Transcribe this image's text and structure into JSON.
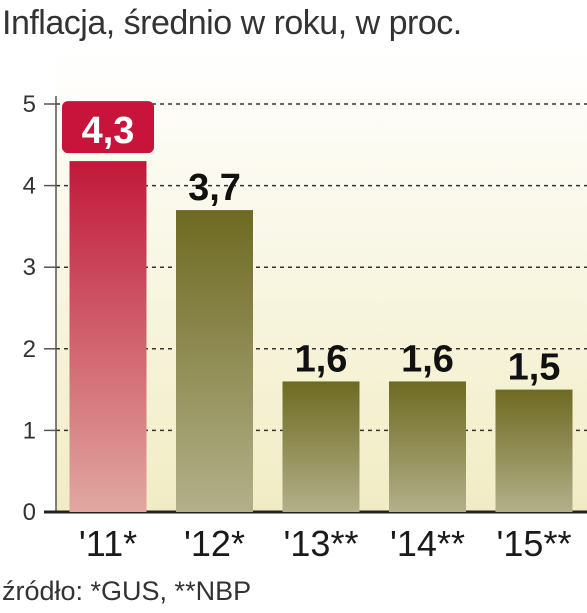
{
  "title": "Inflacja, średnio w roku, w proc.",
  "source": "źródło: *GUS, **NBP",
  "colors": {
    "highlight_top": "#c0193a",
    "highlight_bottom": "#e0a8a0",
    "bar_top": "#6e6a22",
    "bar_bottom": "#b3b08a",
    "background_top": "#ffffff",
    "background_bottom": "#f1ecc4",
    "grid": "#333333",
    "label_box": "#c8143a"
  },
  "chart_data": {
    "type": "bar",
    "title": "Inflacja, średnio w roku, w proc.",
    "categories": [
      "'11*",
      "'12*",
      "'13**",
      "'14**",
      "'15**"
    ],
    "values": [
      4.3,
      3.7,
      1.6,
      1.6,
      1.5
    ],
    "value_labels": [
      "4,3",
      "3,7",
      "1,6",
      "1,6",
      "1,5"
    ],
    "highlight_index": 0,
    "ylim": [
      0,
      5
    ],
    "yticks": [
      "0",
      "1",
      "2",
      "3",
      "4",
      "5"
    ],
    "xlabel": "",
    "ylabel": "",
    "grid": true
  }
}
